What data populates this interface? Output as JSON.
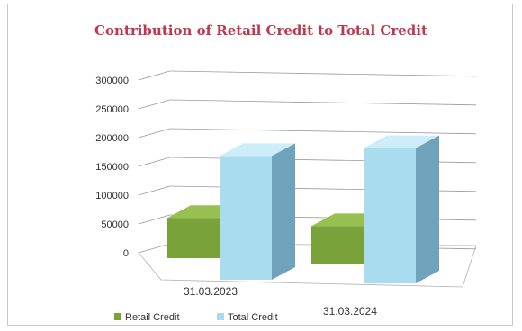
{
  "chart_data": {
    "type": "bar",
    "title": "Contribution of Retail Credit to Total Credit",
    "categories": [
      "31.03.2023",
      "31.03.2024"
    ],
    "series": [
      {
        "name": "Retail Credit",
        "values": [
          70000,
          65000
        ]
      },
      {
        "name": "Total Credit",
        "values": [
          215000,
          235000
        ]
      }
    ],
    "ylim": [
      0,
      300000
    ],
    "yticks": [
      "0",
      "50000",
      "100000",
      "150000",
      "200000",
      "250000",
      "300000"
    ],
    "grid": true,
    "legend_position": "bottom",
    "three_d": true
  },
  "colors": {
    "title": "#c0364f",
    "retail_front": "#7aa23a",
    "retail_top": "#98c050",
    "retail_side": "#5a7f26",
    "total_front": "#a9dcef",
    "total_top": "#cdeef8",
    "total_side": "#6fa3bc"
  }
}
